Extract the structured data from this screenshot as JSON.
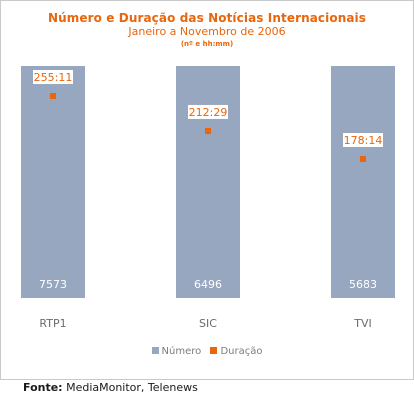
{
  "chart_data": {
    "type": "bar",
    "title": "Número e Duração das Notícias Internacionais",
    "subtitle": "Janeiro a Novembro de 2006",
    "units_note": "(nº e hh:mm)",
    "categories": [
      "RTP1",
      "SIC",
      "TVI"
    ],
    "series": [
      {
        "name": "Número",
        "values": [
          7573,
          6496,
          5683
        ],
        "labels": [
          "7573",
          "6496",
          "5683"
        ],
        "color": "#97a7bf"
      },
      {
        "name": "Duração",
        "values": [
          255.18,
          212.48,
          178.23
        ],
        "labels": [
          "255:11",
          "212:29",
          "178:14"
        ],
        "color": "#e8660e"
      }
    ],
    "legend_position": "bottom",
    "grid": false
  },
  "source": {
    "label": "Fonte:",
    "text": "MediaMonitor, Telenews"
  }
}
